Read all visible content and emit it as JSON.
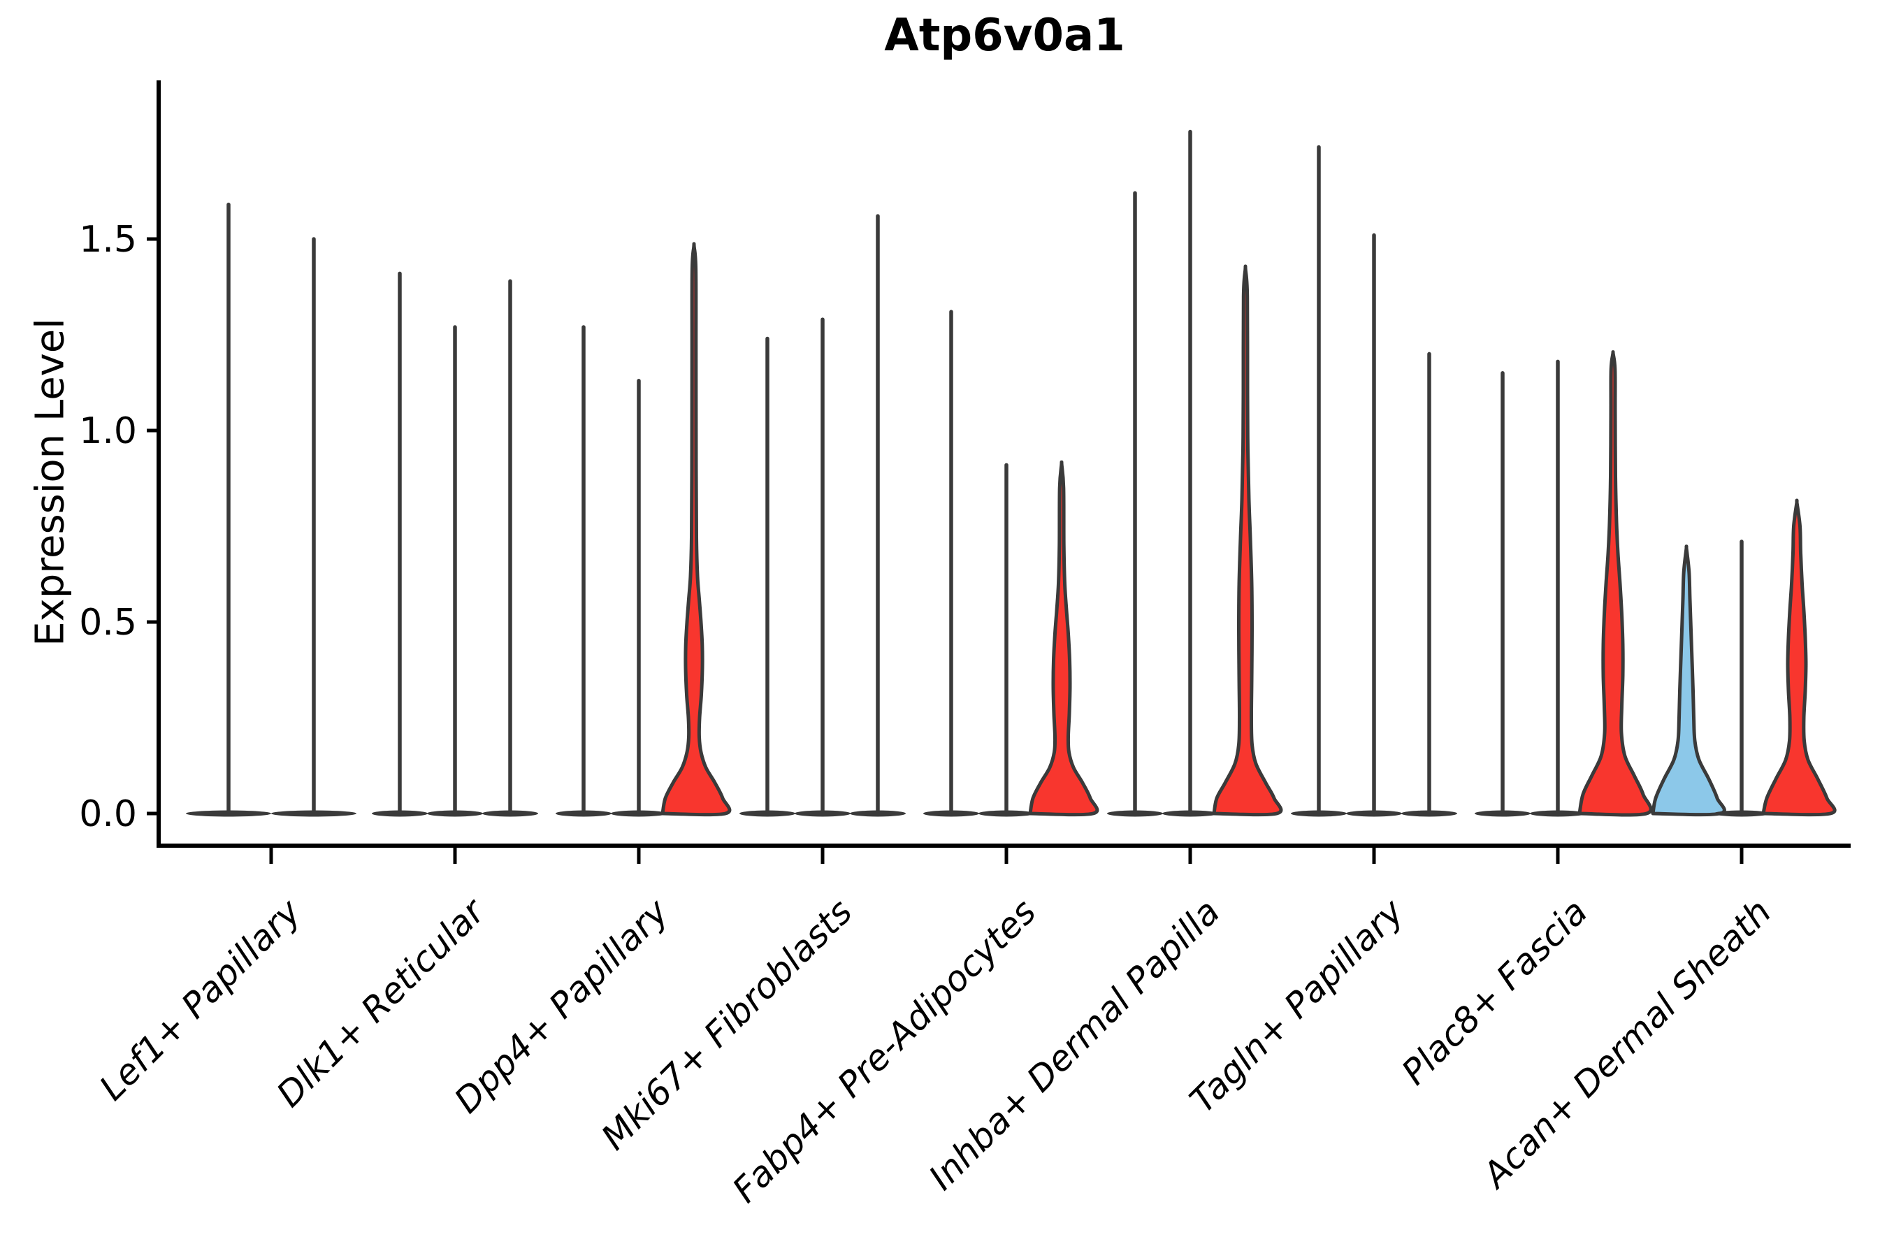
{
  "chart_data": {
    "type": "violin",
    "title": "Atp6v0a1",
    "ylabel": "Expression Level",
    "xlabel": "",
    "ylim": [
      0,
      1.91
    ],
    "grid": false,
    "legend": "none",
    "yticks": [
      {
        "v": 0.0,
        "label": "0.0"
      },
      {
        "v": 0.5,
        "label": "0.5"
      },
      {
        "v": 1.0,
        "label": "1.0"
      },
      {
        "v": 1.5,
        "label": "1.5"
      }
    ],
    "colors": {
      "red": "#f8362e",
      "blue": "#8cc8e9",
      "line": "#3a3a3a",
      "axis": "#000000"
    },
    "groups": [
      {
        "label": "Lef1+ Papillary",
        "violins": [
          {
            "max": 1.59,
            "fill": "none"
          },
          {
            "max": 1.5,
            "fill": "none"
          }
        ]
      },
      {
        "label": "Dlk1+ Reticular",
        "violins": [
          {
            "max": 1.41,
            "fill": "none"
          },
          {
            "max": 1.27,
            "fill": "none"
          },
          {
            "max": 1.39,
            "fill": "none"
          }
        ]
      },
      {
        "label": "Dpp4+ Papillary",
        "violins": [
          {
            "max": 1.27,
            "fill": "none"
          },
          {
            "max": 1.13,
            "fill": "none"
          },
          {
            "max": 1.48,
            "fill": "red",
            "profile": [
              [
                0,
                45
              ],
              [
                0.04,
                41
              ],
              [
                0.08,
                30
              ],
              [
                0.12,
                17
              ],
              [
                0.16,
                10
              ],
              [
                0.2,
                7.5
              ],
              [
                0.25,
                8
              ],
              [
                0.31,
                10.5
              ],
              [
                0.38,
                12
              ],
              [
                0.44,
                11.8
              ],
              [
                0.5,
                10
              ],
              [
                0.56,
                7.5
              ],
              [
                0.62,
                5
              ],
              [
                0.72,
                3.5
              ],
              [
                0.9,
                3
              ],
              [
                1.2,
                2.8
              ],
              [
                1.42,
                2.6
              ],
              [
                1.48,
                0.2
              ]
            ]
          }
        ]
      },
      {
        "label": "Mki67+ Fibroblasts",
        "violins": [
          {
            "max": 1.24,
            "fill": "none"
          },
          {
            "max": 1.29,
            "fill": "none"
          },
          {
            "max": 1.56,
            "fill": "none"
          }
        ]
      },
      {
        "label": "Fabp4+ Pre-Adipocytes",
        "violins": [
          {
            "max": 1.31,
            "fill": "none"
          },
          {
            "max": 0.91,
            "fill": "none"
          },
          {
            "max": 0.91,
            "fill": "red",
            "profile": [
              [
                0,
                45
              ],
              [
                0.04,
                41
              ],
              [
                0.08,
                30
              ],
              [
                0.12,
                17
              ],
              [
                0.16,
                10.5
              ],
              [
                0.2,
                9.5
              ],
              [
                0.26,
                11
              ],
              [
                0.33,
                12
              ],
              [
                0.4,
                11.5
              ],
              [
                0.47,
                9.5
              ],
              [
                0.53,
                7
              ],
              [
                0.6,
                4.5
              ],
              [
                0.7,
                3.2
              ],
              [
                0.85,
                2.8
              ],
              [
                0.91,
                0.2
              ]
            ]
          }
        ]
      },
      {
        "label": "Inhba+ Dermal Papilla",
        "violins": [
          {
            "max": 1.62,
            "fill": "none"
          },
          {
            "max": 1.78,
            "fill": "none"
          },
          {
            "max": 1.42,
            "fill": "red",
            "profile": [
              [
                0,
                45
              ],
              [
                0.04,
                41
              ],
              [
                0.08,
                29
              ],
              [
                0.13,
                15
              ],
              [
                0.18,
                9.5
              ],
              [
                0.25,
                8.5
              ],
              [
                0.35,
                9
              ],
              [
                0.48,
                9.5
              ],
              [
                0.6,
                9
              ],
              [
                0.72,
                7
              ],
              [
                0.82,
                5
              ],
              [
                0.95,
                3.5
              ],
              [
                1.1,
                3
              ],
              [
                1.35,
                2.7
              ],
              [
                1.42,
                0.2
              ]
            ]
          }
        ]
      },
      {
        "label": "Tagln+ Papillary",
        "violins": [
          {
            "max": 1.74,
            "fill": "none"
          },
          {
            "max": 1.51,
            "fill": "none"
          },
          {
            "max": 1.2,
            "fill": "none"
          }
        ]
      },
      {
        "label": "Plac8+ Fascia",
        "violins": [
          {
            "max": 1.15,
            "fill": "none"
          },
          {
            "max": 1.18,
            "fill": "none"
          },
          {
            "max": 1.2,
            "fill": "red",
            "profile": [
              [
                0,
                48
              ],
              [
                0.05,
                43
              ],
              [
                0.1,
                30
              ],
              [
                0.15,
                17
              ],
              [
                0.21,
                12
              ],
              [
                0.28,
                12.5
              ],
              [
                0.36,
                14
              ],
              [
                0.44,
                14
              ],
              [
                0.52,
                12.5
              ],
              [
                0.6,
                10
              ],
              [
                0.68,
                7
              ],
              [
                0.76,
                5
              ],
              [
                0.88,
                3.5
              ],
              [
                1.05,
                3
              ],
              [
                1.16,
                2.8
              ],
              [
                1.2,
                0.2
              ]
            ]
          }
        ]
      },
      {
        "label": "Acan+ Dermal Sheath",
        "violins": [
          {
            "max": 0.69,
            "fill": "blue",
            "profile": [
              [
                0,
                48
              ],
              [
                0.04,
                44
              ],
              [
                0.09,
                32
              ],
              [
                0.14,
                18
              ],
              [
                0.19,
                12
              ],
              [
                0.25,
                10.5
              ],
              [
                0.32,
                9.5
              ],
              [
                0.4,
                8
              ],
              [
                0.48,
                6.5
              ],
              [
                0.56,
                5
              ],
              [
                0.63,
                3.8
              ],
              [
                0.69,
                0.2
              ]
            ]
          },
          {
            "max": 0.71,
            "fill": "none"
          },
          {
            "max": 0.81,
            "fill": "red",
            "profile": [
              [
                0,
                48
              ],
              [
                0.04,
                43
              ],
              [
                0.09,
                30
              ],
              [
                0.14,
                16
              ],
              [
                0.19,
                10.5
              ],
              [
                0.25,
                10
              ],
              [
                0.32,
                12
              ],
              [
                0.39,
                13
              ],
              [
                0.46,
                12
              ],
              [
                0.53,
                10
              ],
              [
                0.6,
                7.5
              ],
              [
                0.68,
                5.5
              ],
              [
                0.75,
                4.5
              ],
              [
                0.81,
                0.2
              ]
            ]
          }
        ]
      }
    ]
  }
}
